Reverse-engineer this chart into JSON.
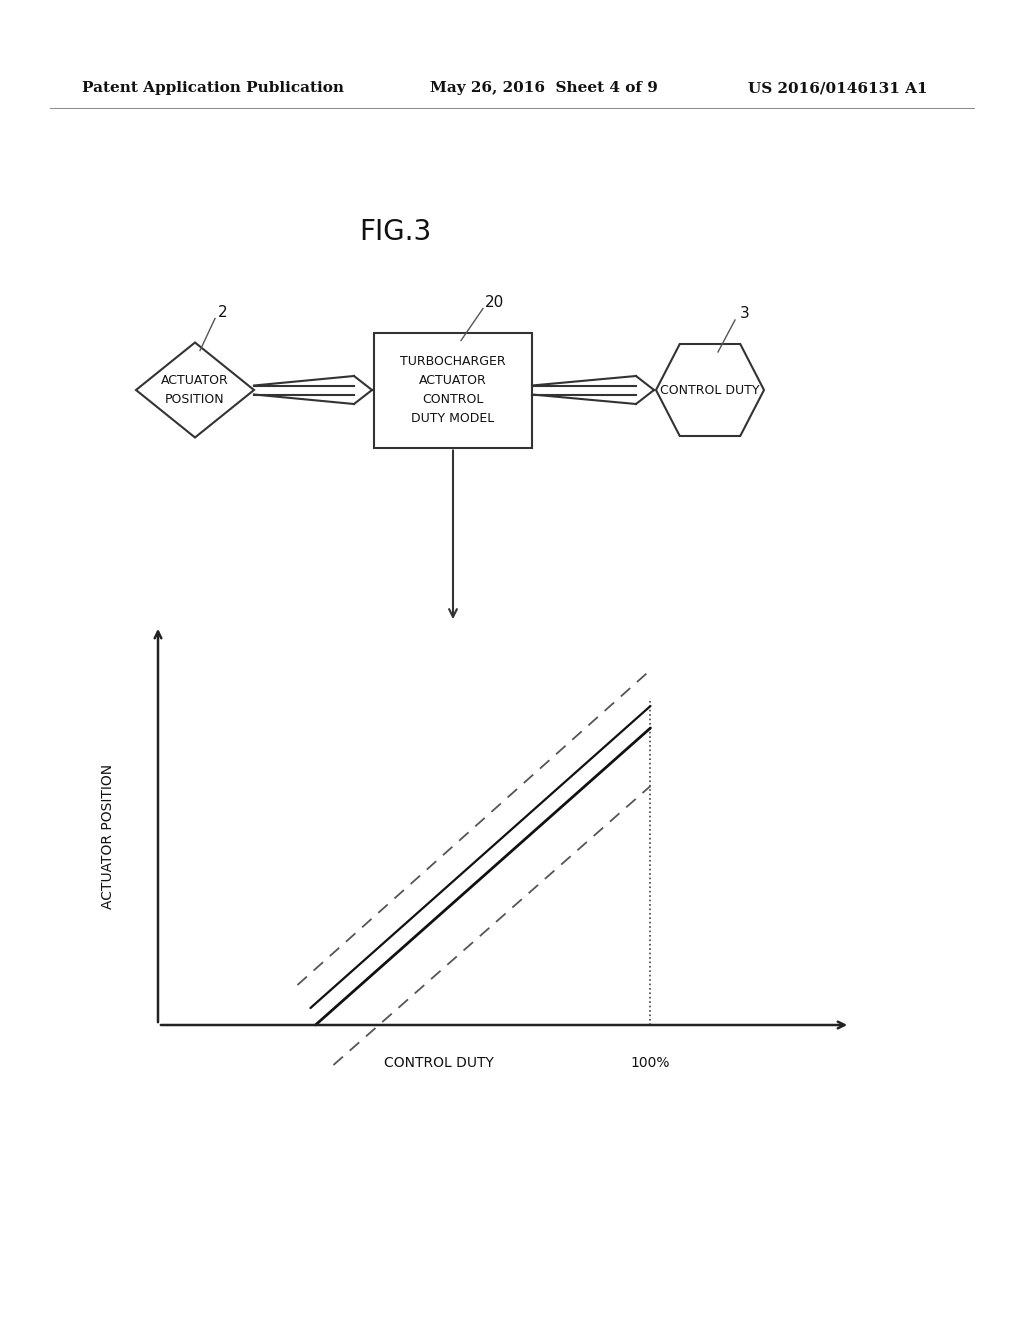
{
  "fig_width": 10.24,
  "fig_height": 13.2,
  "bg_color": "#ffffff",
  "header_left": "Patent Application Publication",
  "header_center": "May 26, 2016  Sheet 4 of 9",
  "header_right": "US 2016/0146131 A1",
  "fig_label": "FIG.3",
  "diagram": {
    "diamond_label": "ACTUATOR\nPOSITION",
    "diamond_ref": "2",
    "box_label": "TURBOCHARGER\nACTUATOR\nCONTROL\nDUTY MODEL",
    "box_ref": "20",
    "hex_label": "CONTROL DUTY",
    "hex_ref": "3"
  },
  "graph": {
    "xlabel": "CONTROL DUTY",
    "ylabel": "ACTUATOR POSITION",
    "x100_label": "100%"
  },
  "line_color": "#000000",
  "dashed_color": "#555555"
}
